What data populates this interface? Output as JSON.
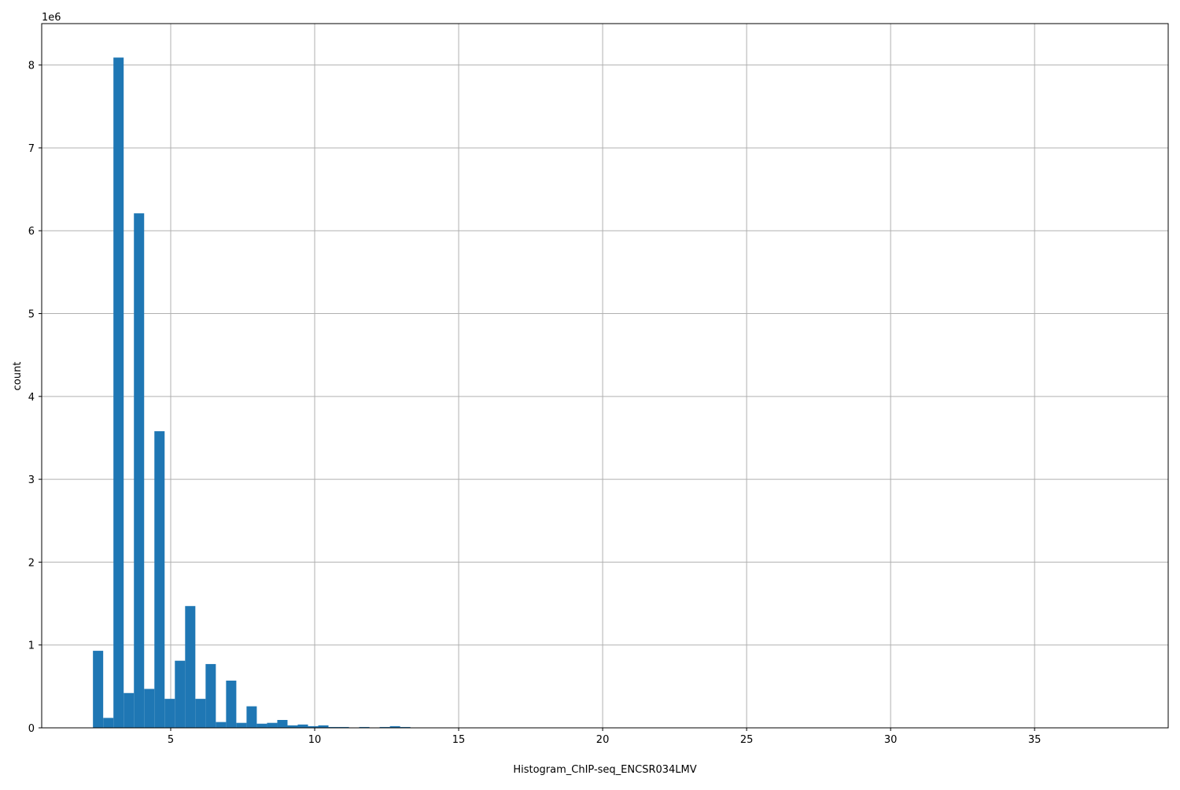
{
  "chart_data": {
    "type": "bar",
    "subtype": "histogram",
    "title": "",
    "xlabel": "Histogram_ChIP-seq_ENCSR034LMV",
    "ylabel": "count",
    "y_offset_label": "1e6",
    "y_scale": 1000000,
    "xlim": [
      0.52,
      39.64
    ],
    "ylim": [
      0,
      8.5
    ],
    "bins": 100,
    "range": [
      2.3,
      37.86
    ],
    "xticks": [
      5,
      10,
      15,
      20,
      25,
      30,
      35
    ],
    "yticks": [
      0,
      1,
      2,
      3,
      4,
      5,
      6,
      7,
      8
    ],
    "grid": true,
    "color": "#1f77b4",
    "values_1e6": [
      0.93,
      0.12,
      8.09,
      0.42,
      6.21,
      0.47,
      3.58,
      0.35,
      0.81,
      1.47,
      0.35,
      0.77,
      0.07,
      0.57,
      0.06,
      0.26,
      0.05,
      0.06,
      0.095,
      0.03,
      0.04,
      0.02,
      0.03,
      0.01,
      0.01,
      0.003,
      0.01,
      0.003,
      0.01,
      0.02,
      0.01,
      0,
      0,
      0,
      0,
      0,
      0,
      0,
      0,
      0,
      0,
      0,
      0,
      0,
      0,
      0,
      0,
      0,
      0,
      0,
      0,
      0,
      0,
      0,
      0,
      0,
      0,
      0,
      0,
      0,
      0,
      0,
      0,
      0,
      0,
      0,
      0,
      0,
      0,
      0,
      0,
      0,
      0,
      0,
      0,
      0,
      0,
      0,
      0,
      0,
      0,
      0,
      0,
      0,
      0,
      0,
      0,
      0,
      0,
      0,
      0,
      0,
      0,
      0,
      0,
      0,
      0,
      0,
      0,
      0
    ]
  }
}
